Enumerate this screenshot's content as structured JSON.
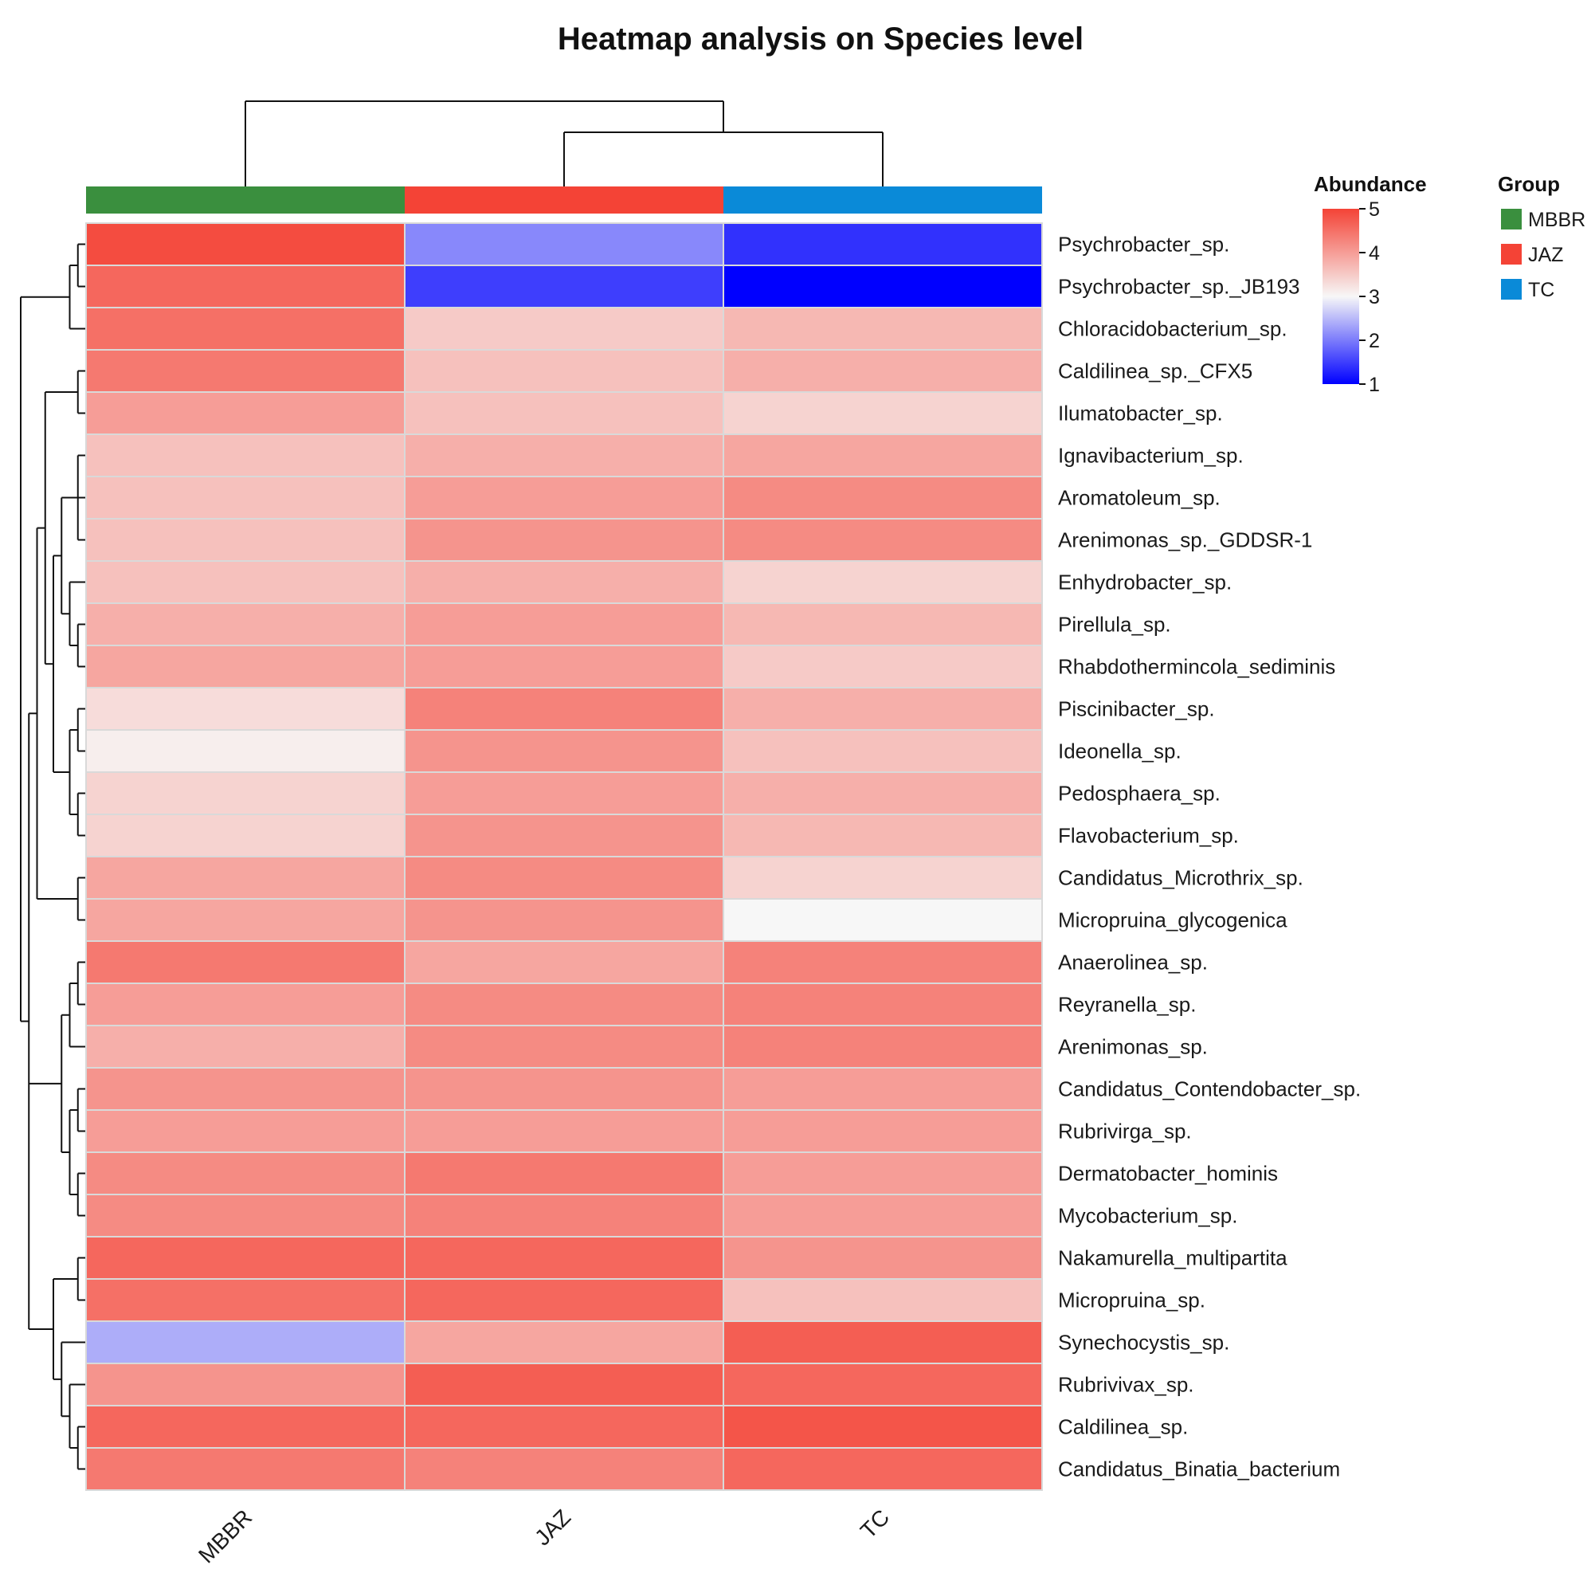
{
  "chart_data": {
    "type": "heatmap",
    "title": "Heatmap analysis on Species level",
    "columns": [
      "MBBR",
      "JAZ",
      "TC"
    ],
    "rows": [
      "Psychrobacter_sp.",
      "Psychrobacter_sp._JB193",
      "Chloracidobacterium_sp.",
      "Caldilinea_sp._CFX5",
      "Ilumatobacter_sp.",
      "Ignavibacterium_sp.",
      "Aromatoleum_sp.",
      "Arenimonas_sp._GDDSR-1",
      "Enhydrobacter_sp.",
      "Pirellula_sp.",
      "Rhabdothermincola_sediminis",
      "Piscinibacter_sp.",
      "Ideonella_sp.",
      "Pedosphaera_sp.",
      "Flavobacterium_sp.",
      "Candidatus_Microthrix_sp.",
      "Micropruina_glycogenica",
      "Anaerolinea_sp.",
      "Reyranella_sp.",
      "Arenimonas_sp.",
      "Candidatus_Contendobacter_sp.",
      "Rubrivirga_sp.",
      "Dermatobacter_hominis",
      "Mycobacterium_sp.",
      "Nakamurella_multipartita",
      "Micropruina_sp.",
      "Synechocystis_sp.",
      "Rubrivivax_sp.",
      "Caldilinea_sp.",
      "Candidatus_Binatia_bacterium"
    ],
    "values": [
      [
        4.9,
        2.1,
        1.4
      ],
      [
        4.6,
        1.5,
        1.0
      ],
      [
        4.5,
        3.5,
        3.7
      ],
      [
        4.4,
        3.6,
        3.8
      ],
      [
        4.0,
        3.6,
        3.4
      ],
      [
        3.6,
        3.8,
        3.9
      ],
      [
        3.6,
        4.0,
        4.2
      ],
      [
        3.6,
        4.1,
        4.2
      ],
      [
        3.6,
        3.8,
        3.4
      ],
      [
        3.8,
        4.0,
        3.7
      ],
      [
        3.9,
        4.0,
        3.5
      ],
      [
        3.3,
        4.3,
        3.8
      ],
      [
        3.1,
        4.1,
        3.6
      ],
      [
        3.4,
        4.0,
        3.8
      ],
      [
        3.4,
        4.1,
        3.7
      ],
      [
        3.9,
        4.2,
        3.4
      ],
      [
        3.9,
        4.1,
        3.0
      ],
      [
        4.4,
        3.9,
        4.3
      ],
      [
        4.0,
        4.2,
        4.3
      ],
      [
        3.8,
        4.2,
        4.3
      ],
      [
        4.1,
        4.1,
        4.0
      ],
      [
        4.0,
        4.0,
        4.0
      ],
      [
        4.2,
        4.4,
        4.0
      ],
      [
        4.2,
        4.3,
        4.0
      ],
      [
        4.6,
        4.6,
        4.1
      ],
      [
        4.5,
        4.6,
        3.6
      ],
      [
        2.4,
        3.9,
        4.7
      ],
      [
        4.1,
        4.7,
        4.6
      ],
      [
        4.6,
        4.6,
        4.8
      ],
      [
        4.4,
        4.3,
        4.6
      ]
    ],
    "color_scale": {
      "min": 1,
      "mid": 3,
      "max": 5,
      "low_color": "#0000ff",
      "mid_color": "#f7f7f7",
      "high_color": "#f44336"
    },
    "legend": {
      "abundance_title": "Abundance",
      "abundance_ticks": [
        "5",
        "4",
        "3",
        "2",
        "1"
      ],
      "group_title": "Group",
      "groups": [
        {
          "name": "MBBR",
          "color": "#3a8f3e"
        },
        {
          "name": "JAZ",
          "color": "#f44336"
        },
        {
          "name": "TC",
          "color": "#0a8ad8"
        }
      ]
    }
  }
}
